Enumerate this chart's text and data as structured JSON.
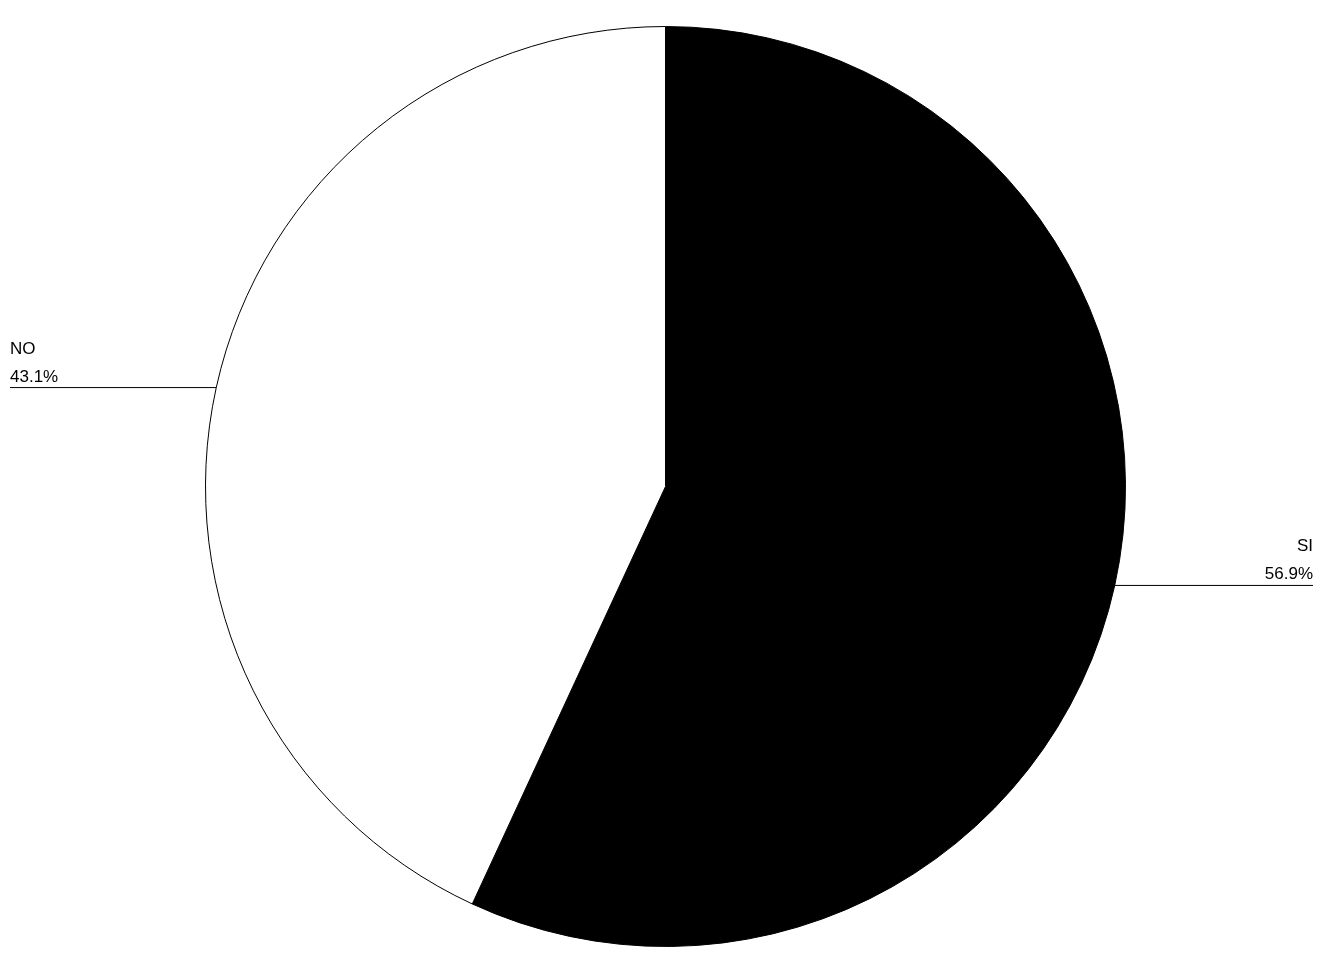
{
  "chart_data": {
    "type": "pie",
    "categories": [
      "SI",
      "NO"
    ],
    "values": [
      56.9,
      43.1
    ],
    "colors": [
      "#000000",
      "#ffffff"
    ],
    "value_labels": [
      "56.9%",
      "43.1%"
    ],
    "legend": false
  }
}
